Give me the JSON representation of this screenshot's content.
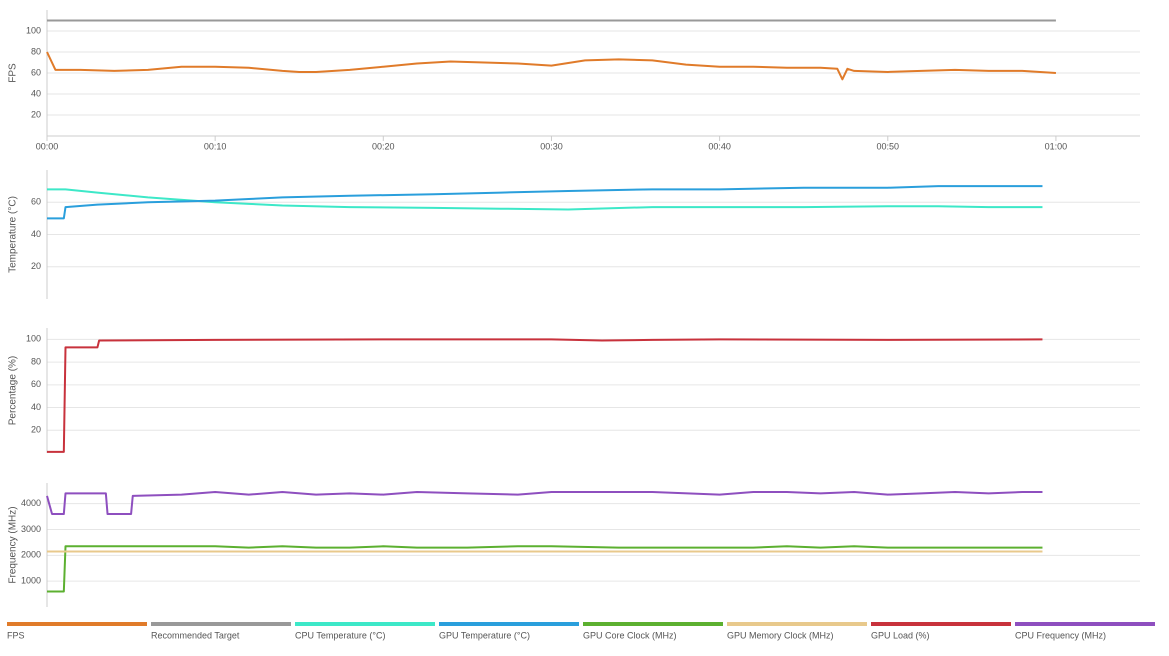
{
  "chart_data": [
    {
      "type": "line",
      "y_label": "FPS",
      "x": [
        0,
        0.5,
        1,
        2,
        4,
        6,
        8,
        10,
        12,
        14,
        15,
        16,
        18,
        20,
        22,
        24,
        26,
        28,
        30,
        32,
        34,
        36,
        38,
        40,
        42,
        44,
        46,
        47,
        47.3,
        47.6,
        48,
        50,
        52,
        54,
        56,
        58,
        60
      ],
      "series": [
        {
          "name": "FPS",
          "color": "#e07b2a",
          "values": [
            80,
            63,
            63,
            63,
            62,
            63,
            66,
            66,
            65,
            62,
            61,
            61,
            63,
            66,
            69,
            71,
            70,
            69,
            67,
            72,
            73,
            72,
            68,
            66,
            66,
            65,
            65,
            64,
            54,
            64,
            62,
            61,
            62,
            63,
            62,
            62,
            60
          ]
        },
        {
          "name": "Recommended Target",
          "color": "#999999",
          "values": [
            110,
            110,
            110,
            110,
            110,
            110,
            110,
            110,
            110,
            110,
            110,
            110,
            110,
            110,
            110,
            110,
            110,
            110,
            110,
            110,
            110,
            110,
            110,
            110,
            110,
            110,
            110,
            110,
            110,
            110,
            110,
            110,
            110,
            110,
            110,
            110,
            110
          ]
        }
      ],
      "xlim": [
        0,
        65
      ],
      "xticks": [
        {
          "value": 0,
          "label": "00:00"
        },
        {
          "value": 10,
          "label": "00:10"
        },
        {
          "value": 20,
          "label": "00:20"
        },
        {
          "value": 30,
          "label": "00:30"
        },
        {
          "value": 40,
          "label": "00:40"
        },
        {
          "value": 50,
          "label": "00:50"
        },
        {
          "value": 60,
          "label": "01:00"
        }
      ],
      "ylim": [
        0,
        120
      ],
      "yticks": [
        20,
        40,
        60,
        80,
        100
      ],
      "grid": true
    },
    {
      "type": "line",
      "y_label": "Temperature (°C)",
      "x": [
        0,
        1,
        1.1,
        3,
        6,
        10,
        12,
        14,
        18,
        23,
        27,
        31,
        36,
        40,
        45,
        50,
        53,
        56,
        59.2
      ],
      "series": [
        {
          "name": "CPU Temperature (°C)",
          "color": "#3de8c8",
          "values": [
            68,
            68,
            68,
            66,
            63,
            60,
            59,
            58,
            57,
            56.5,
            56,
            55.5,
            57,
            57,
            57,
            57.5,
            57.5,
            57,
            57
          ]
        },
        {
          "name": "GPU Temperature (°C)",
          "color": "#2a9fdc",
          "values": [
            50,
            50,
            57,
            58.5,
            60,
            61,
            62,
            63,
            64,
            65,
            66,
            67,
            68,
            68,
            69,
            69,
            70,
            70,
            70
          ]
        }
      ],
      "xlim": [
        0,
        65
      ],
      "ylim": [
        0,
        80
      ],
      "yticks": [
        20,
        40,
        60
      ],
      "grid": true
    },
    {
      "type": "line",
      "y_label": "Percentage (%)",
      "x": [
        0,
        1,
        1.1,
        3,
        3.1,
        10,
        20,
        30,
        33,
        36,
        40,
        50,
        59.2
      ],
      "series": [
        {
          "name": "GPU Load (%)",
          "color": "#c8323c",
          "values": [
            1,
            1,
            93,
            93,
            99,
            99.5,
            100,
            100,
            99,
            99.5,
            100,
            99.5,
            100
          ]
        }
      ],
      "xlim": [
        0,
        65
      ],
      "ylim": [
        0,
        110
      ],
      "yticks": [
        20,
        40,
        60,
        80,
        100
      ],
      "grid": true
    },
    {
      "type": "line",
      "y_label": "Frequency (MHz)",
      "x": [
        0,
        0.3,
        1,
        1.1,
        3.5,
        3.6,
        5,
        5.1,
        8,
        10,
        12,
        14,
        16,
        18,
        20,
        22,
        25,
        28,
        30,
        34,
        36,
        40,
        42,
        44,
        46,
        48,
        50,
        52,
        54,
        56,
        58,
        59.2
      ],
      "series": [
        {
          "name": "CPU Frequency (MHz)",
          "color": "#8e4fbf",
          "values": [
            4300,
            3600,
            3600,
            4400,
            4400,
            3600,
            3600,
            4300,
            4350,
            4450,
            4350,
            4450,
            4350,
            4400,
            4350,
            4450,
            4400,
            4350,
            4450,
            4450,
            4450,
            4350,
            4450,
            4450,
            4400,
            4450,
            4350,
            4400,
            4450,
            4400,
            4450,
            4450
          ]
        },
        {
          "name": "GPU Core Clock (MHz)",
          "color": "#5cb030",
          "values": [
            600,
            600,
            600,
            2350,
            2350,
            2350,
            2350,
            2350,
            2350,
            2350,
            2300,
            2350,
            2300,
            2300,
            2350,
            2300,
            2300,
            2350,
            2350,
            2300,
            2300,
            2300,
            2300,
            2350,
            2300,
            2350,
            2300,
            2300,
            2300,
            2300,
            2300,
            2300
          ]
        },
        {
          "name": "GPU Memory Clock (MHz)",
          "color": "#e8c98c",
          "values": [
            2150,
            2150,
            2150,
            2150,
            2150,
            2150,
            2150,
            2150,
            2150,
            2150,
            2150,
            2150,
            2150,
            2150,
            2150,
            2150,
            2150,
            2150,
            2150,
            2150,
            2150,
            2150,
            2150,
            2150,
            2150,
            2150,
            2150,
            2150,
            2150,
            2150,
            2150,
            2150
          ]
        }
      ],
      "xlim": [
        0,
        65
      ],
      "ylim": [
        0,
        4800
      ],
      "yticks": [
        1000,
        2000,
        3000,
        4000
      ],
      "grid": true
    }
  ]
}
